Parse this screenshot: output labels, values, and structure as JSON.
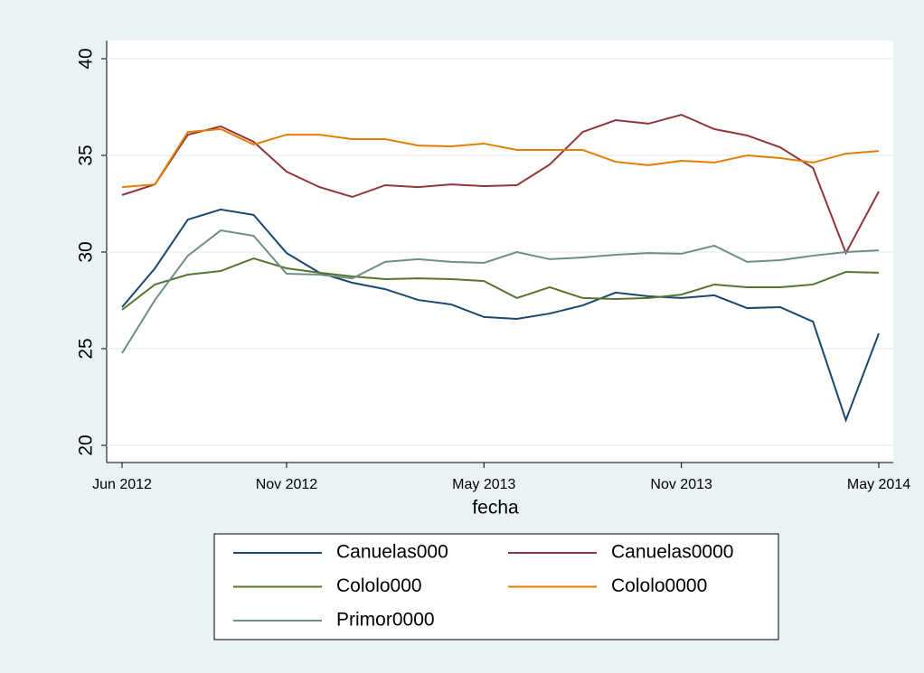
{
  "chart_data": {
    "type": "line",
    "x_label": "fecha",
    "categories": [
      "Jun 2012",
      null,
      null,
      null,
      null,
      "Nov 2012",
      null,
      null,
      null,
      null,
      null,
      "May 2013",
      null,
      null,
      null,
      null,
      null,
      "Nov 2013",
      null,
      null,
      null,
      null,
      null,
      "May 2014"
    ],
    "ylim": [
      20,
      40
    ],
    "yticks": [
      20,
      25,
      30,
      35,
      40
    ],
    "grid": true,
    "series": [
      {
        "name": "Canuelas000",
        "color": "#1a476f",
        "values": [
          27.15,
          29.16,
          31.68,
          32.2,
          31.92,
          29.95,
          28.93,
          28.41,
          28.08,
          27.52,
          27.29,
          26.64,
          26.54,
          26.82,
          27.24,
          27.9,
          27.71,
          27.62,
          27.76,
          27.1,
          27.15,
          26.4,
          21.31,
          25.79
        ]
      },
      {
        "name": "Canuelas0000",
        "color": "#90353b",
        "values": [
          32.95,
          33.5,
          36.07,
          36.5,
          35.7,
          34.16,
          33.36,
          32.85,
          33.46,
          33.36,
          33.5,
          33.41,
          33.46,
          34.53,
          36.21,
          36.82,
          36.64,
          37.1,
          36.36,
          36.03,
          35.42,
          34.35,
          29.95,
          33.13
        ]
      },
      {
        "name": "Cololo000",
        "color": "#55752f",
        "values": [
          27.01,
          28.32,
          28.83,
          29.02,
          29.67,
          29.16,
          28.93,
          28.74,
          28.6,
          28.64,
          28.6,
          28.5,
          27.62,
          28.18,
          27.62,
          27.57,
          27.62,
          27.8,
          28.32,
          28.18,
          28.18,
          28.32,
          28.97,
          28.93
        ]
      },
      {
        "name": "Cololo0000",
        "color": "#e37e00",
        "values": [
          33.36,
          33.5,
          36.21,
          36.36,
          35.56,
          36.07,
          36.07,
          35.84,
          35.84,
          35.51,
          35.47,
          35.61,
          35.28,
          35.28,
          35.28,
          34.67,
          34.49,
          34.72,
          34.63,
          35.0,
          34.86,
          34.63,
          35.09,
          35.23
        ]
      },
      {
        "name": "Primor0000",
        "color": "#6e8e84",
        "values": [
          24.77,
          27.52,
          29.81,
          31.12,
          30.84,
          28.88,
          28.83,
          28.64,
          29.49,
          29.63,
          29.49,
          29.44,
          30.0,
          29.63,
          29.72,
          29.86,
          29.95,
          29.91,
          30.33,
          29.49,
          29.58,
          29.81,
          30.0,
          30.09
        ]
      }
    ]
  }
}
